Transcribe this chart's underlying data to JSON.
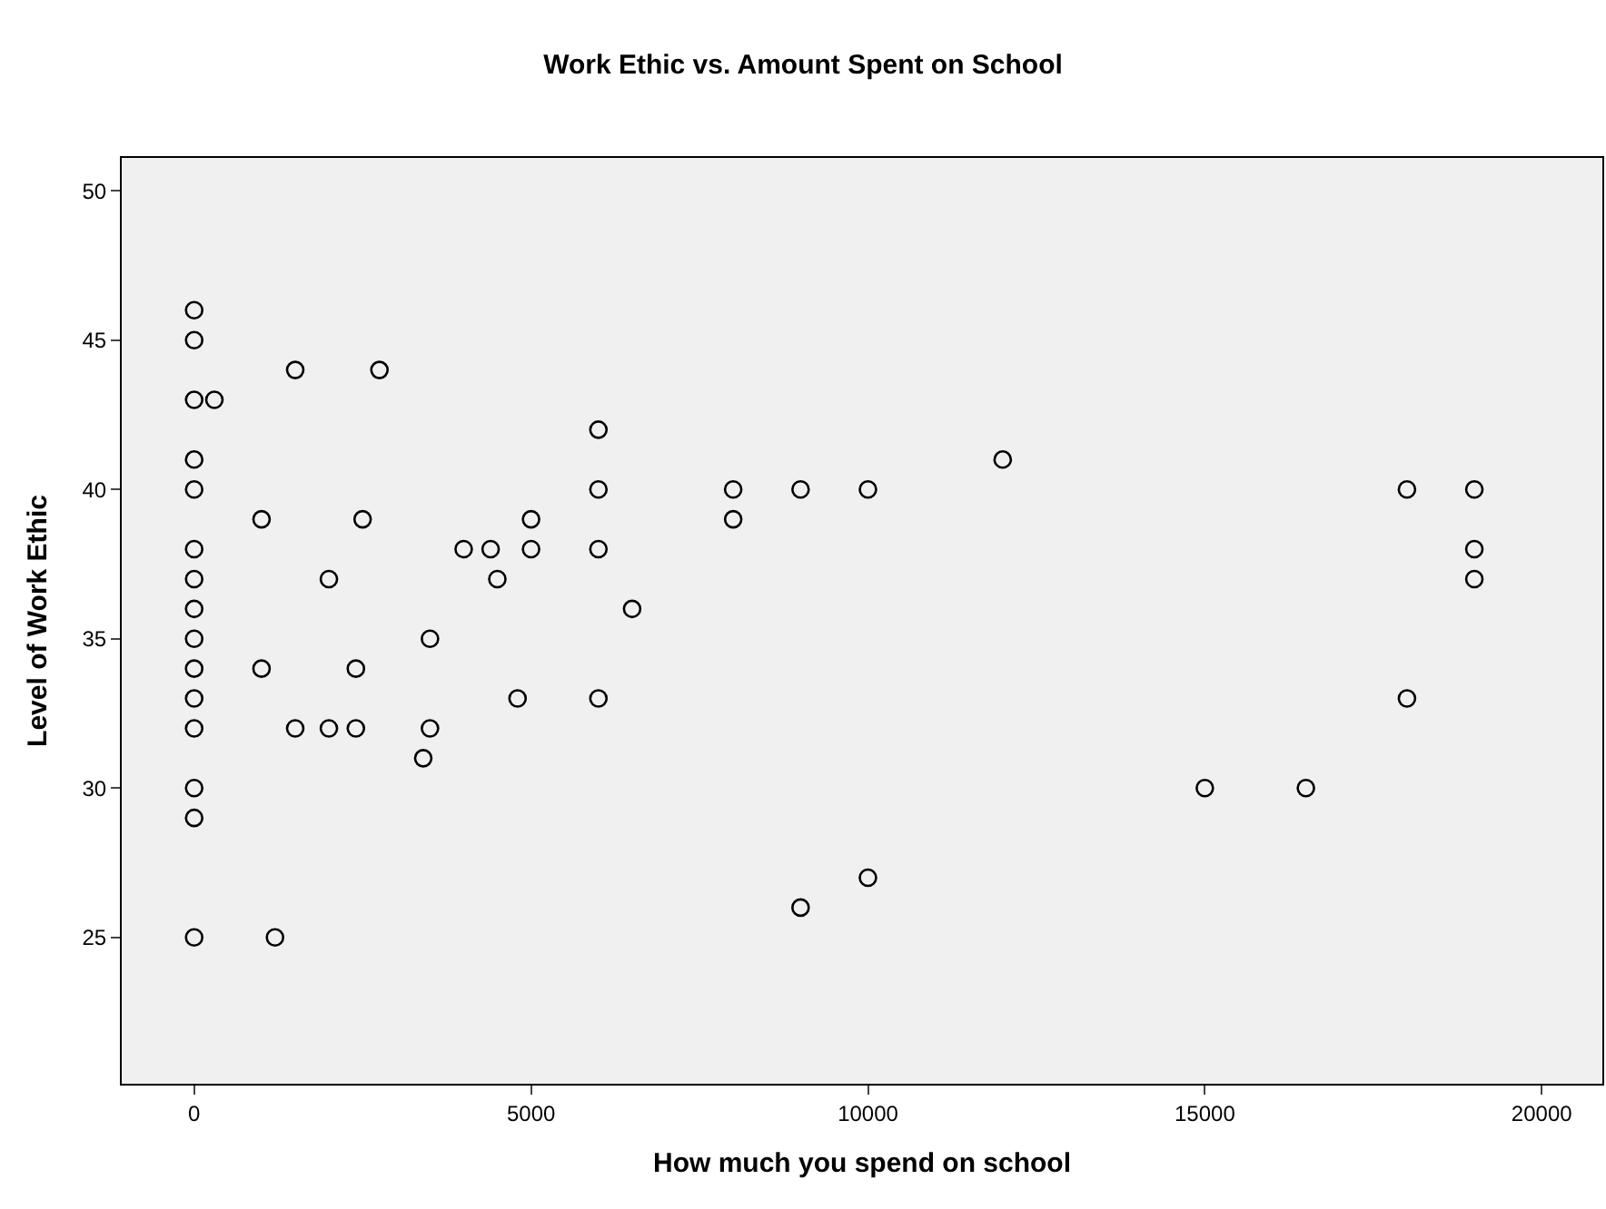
{
  "chart_data": {
    "type": "scatter",
    "title": "Work Ethic vs. Amount Spent on School",
    "xlabel": "How much you spend on school",
    "ylabel": "Level of Work Ethic",
    "x": [
      0,
      0,
      0,
      0,
      0,
      0,
      0,
      0,
      0,
      0,
      0,
      0,
      0,
      0,
      0,
      300,
      1000,
      1000,
      1200,
      1500,
      1500,
      2000,
      2000,
      2750,
      2500,
      2400,
      2400,
      3400,
      3500,
      3500,
      4000,
      4400,
      4500,
      4800,
      5000,
      5000,
      6000,
      6000,
      6000,
      6000,
      6500,
      8000,
      8000,
      9000,
      9000,
      10000,
      10000,
      12000,
      15000,
      16500,
      18000,
      18000,
      19000,
      19000,
      19000
    ],
    "series": [
      {
        "color": "#000000",
        "values": [
          46,
          45,
          43,
          41,
          40,
          38,
          37,
          36,
          35,
          34,
          33,
          32,
          30,
          29,
          25,
          43,
          39,
          34,
          25,
          44,
          32,
          37,
          32,
          44,
          39,
          34,
          32,
          31,
          35,
          32,
          38,
          38,
          37,
          33,
          39,
          38,
          42,
          40,
          38,
          33,
          36,
          40,
          39,
          40,
          26,
          40,
          27,
          41,
          30,
          30,
          40,
          33,
          40,
          38,
          37
        ]
      }
    ],
    "xlim": [
      -1075,
      20900
    ],
    "ylim": [
      20.1,
      51.1
    ],
    "xticks": [
      0,
      5000,
      10000,
      15000,
      20000
    ],
    "yticks": [
      25,
      30,
      35,
      40,
      45,
      50
    ],
    "marker": "circle",
    "grid": false
  }
}
